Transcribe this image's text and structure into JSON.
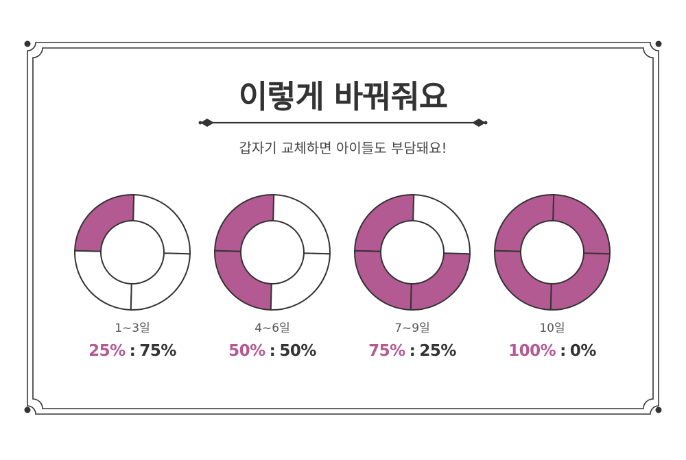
{
  "title": "이렇게 바꿔줘요",
  "subtitle": "갑자기 교체하면 아이들도 부담돼요!",
  "colors": {
    "accent": "#b45a93",
    "stroke": "#333333",
    "text": "#333333",
    "muted": "#555555"
  },
  "items": [
    {
      "period": "1~3일",
      "filled_quarters": 1,
      "pct_a": "25%",
      "separator": ":",
      "pct_b": "75%"
    },
    {
      "period": "4~6일",
      "filled_quarters": 2,
      "pct_a": "50%",
      "separator": ":",
      "pct_b": "50%"
    },
    {
      "period": "7~9일",
      "filled_quarters": 3,
      "pct_a": "75%",
      "separator": ":",
      "pct_b": "25%"
    },
    {
      "period": "10일",
      "filled_quarters": 4,
      "pct_a": "100%",
      "separator": ":",
      "pct_b": "0%"
    }
  ]
}
